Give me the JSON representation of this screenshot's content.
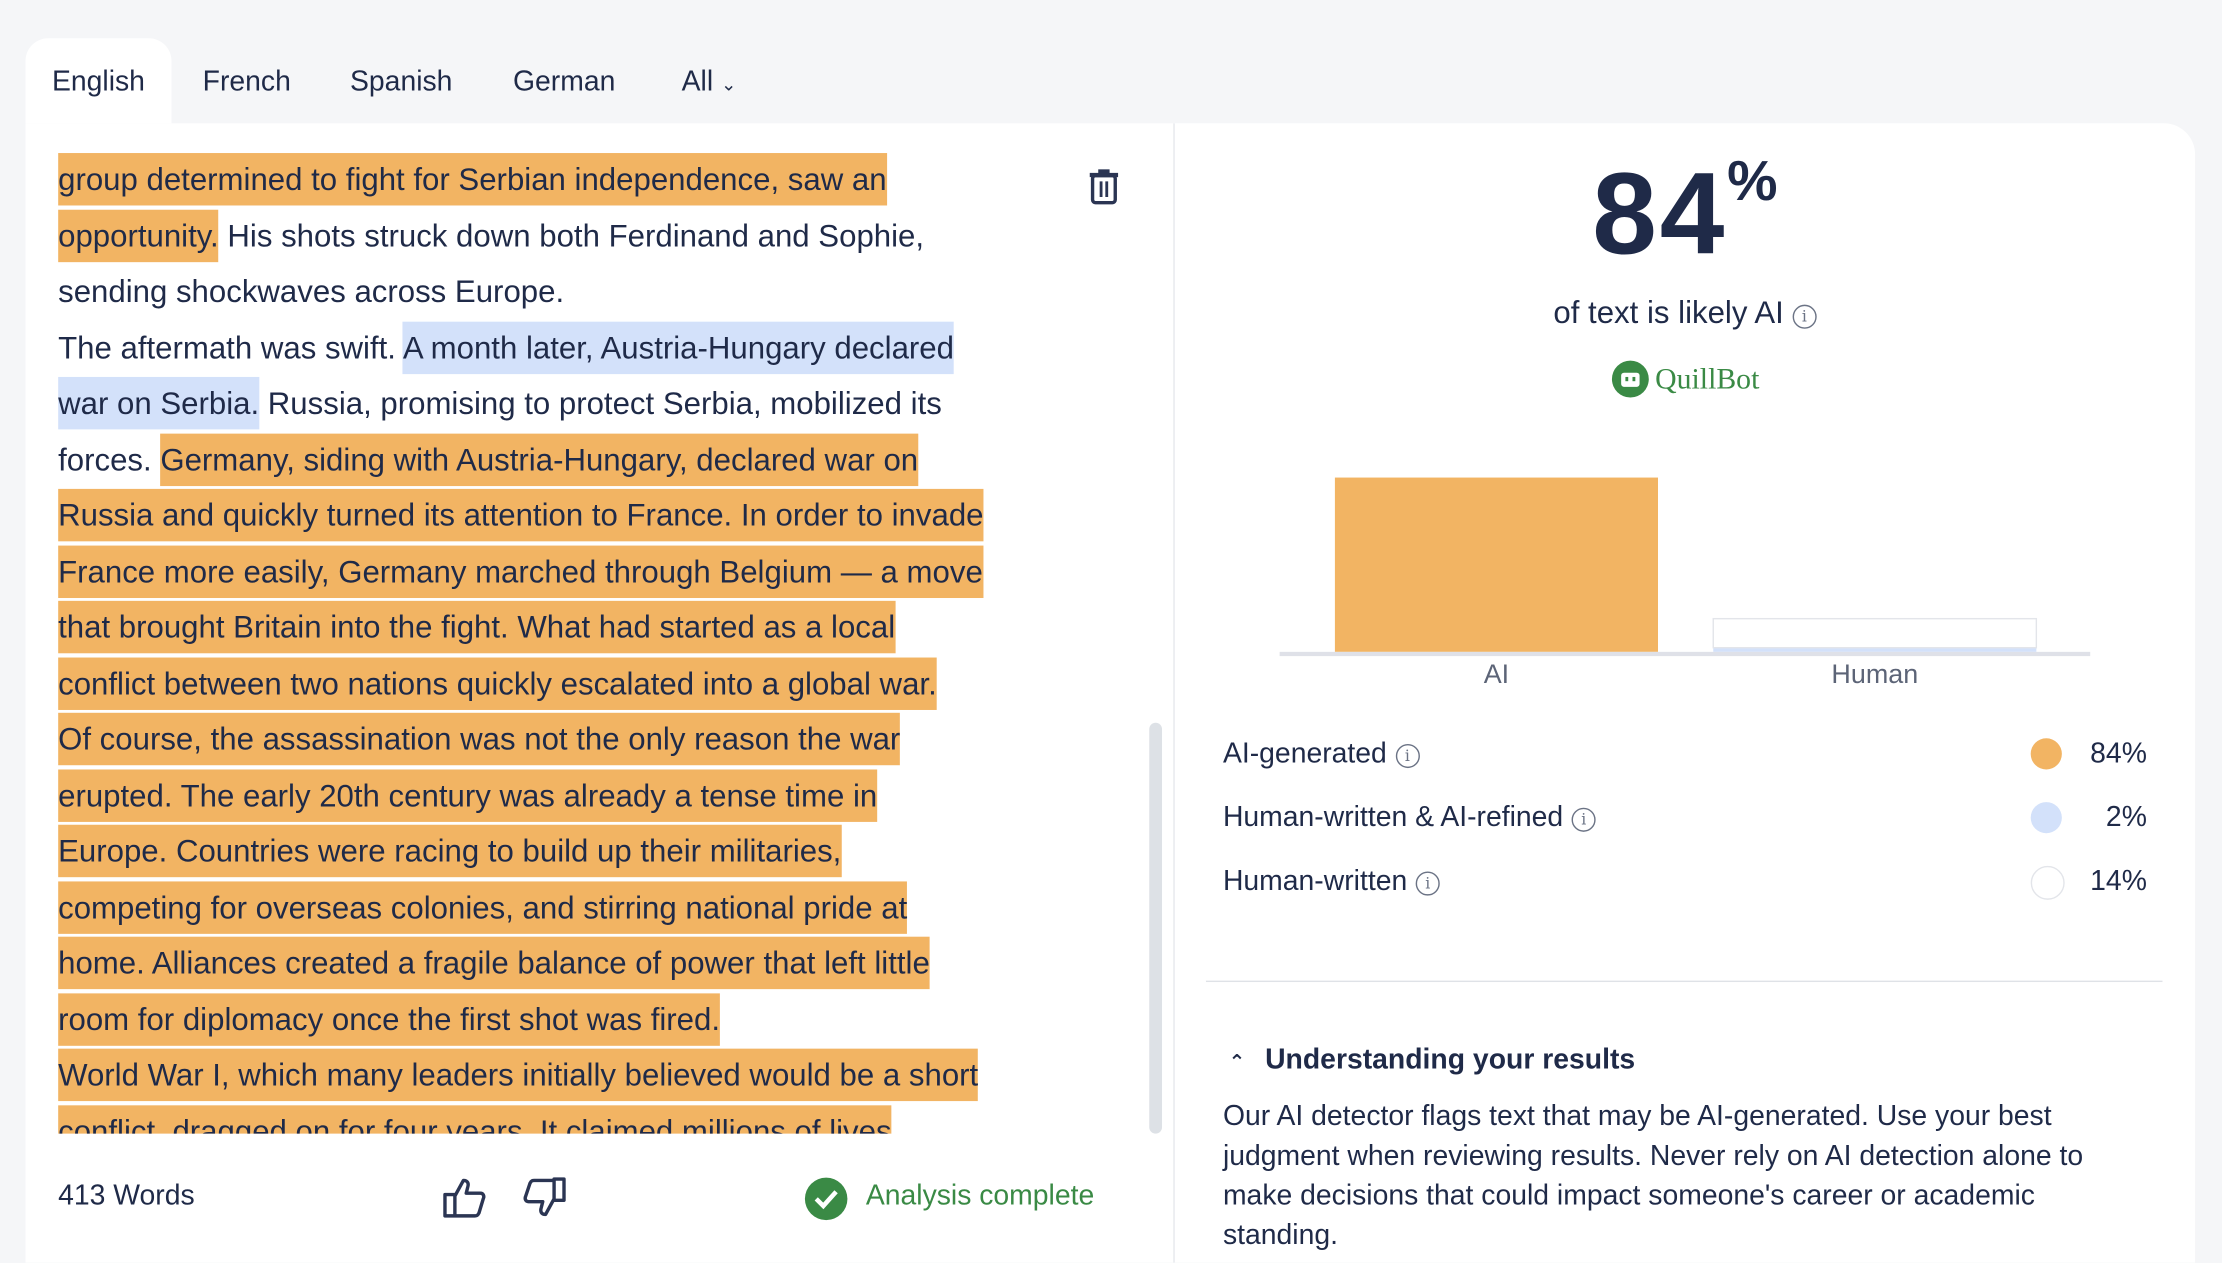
{
  "tabs": [
    {
      "label": "English",
      "active": true
    },
    {
      "label": "French"
    },
    {
      "label": "Spanish"
    },
    {
      "label": "German"
    },
    {
      "label": "All"
    }
  ],
  "editor": {
    "lines": [
      [
        {
          "text": "group determined to fight for Serbian independence, saw an",
          "type": "ai"
        }
      ],
      [
        {
          "text": "opportunity.",
          "type": "ai"
        },
        {
          "text": " His shots struck down both Ferdinand and Sophie,",
          "type": "human"
        }
      ],
      [
        {
          "text": "sending shockwaves across Europe.",
          "type": "human"
        }
      ],
      [
        {
          "text": "The aftermath was swift. ",
          "type": "human"
        },
        {
          "text": "A month later, Austria-Hungary declared",
          "type": "refined"
        }
      ],
      [
        {
          "text": "war on Serbia.",
          "type": "refined"
        },
        {
          "text": " Russia, promising to protect Serbia, mobilized its",
          "type": "human"
        }
      ],
      [
        {
          "text": "forces. ",
          "type": "human"
        },
        {
          "text": "Germany, siding with Austria-Hungary, declared war on",
          "type": "ai"
        }
      ],
      [
        {
          "text": "Russia and quickly turned its attention to France. In order to invade",
          "type": "ai"
        }
      ],
      [
        {
          "text": "France more easily, Germany marched through Belgium — a move",
          "type": "ai"
        }
      ],
      [
        {
          "text": "that brought Britain into the fight. What had started as a local",
          "type": "ai"
        }
      ],
      [
        {
          "text": "conflict between two nations quickly escalated into a global war.",
          "type": "ai"
        }
      ],
      [
        {
          "text": "Of course, the assassination was not the only reason the war",
          "type": "ai"
        }
      ],
      [
        {
          "text": "erupted. The early 20th century was already a tense time in",
          "type": "ai"
        }
      ],
      [
        {
          "text": "Europe. Countries were racing to build up their militaries,",
          "type": "ai"
        }
      ],
      [
        {
          "text": "competing for overseas colonies, and stirring national pride at",
          "type": "ai"
        }
      ],
      [
        {
          "text": "home. Alliances created a fragile balance of power that left little",
          "type": "ai"
        }
      ],
      [
        {
          "text": "room for diplomacy once the first shot was fired.",
          "type": "ai"
        }
      ],
      [
        {
          "text": "World War I, which many leaders initially believed would be a short",
          "type": "ai"
        }
      ],
      [
        {
          "text": "conflict, dragged on for four years. It claimed millions of lives",
          "type": "ai"
        }
      ]
    ]
  },
  "footer": {
    "word_count": "413 Words",
    "status": "Analysis complete"
  },
  "result": {
    "percent": "84",
    "percent_sign": "%",
    "subtitle": "of text is likely AI",
    "brand": "QuillBot"
  },
  "chart_data": {
    "type": "bar",
    "categories": [
      "AI",
      "Human"
    ],
    "series": [
      {
        "name": "AI-generated",
        "values": [
          84,
          0
        ],
        "color": "#f2b463"
      },
      {
        "name": "Human-written & AI-refined",
        "values": [
          0,
          2
        ],
        "color": "#d3e1fa"
      },
      {
        "name": "Human-written",
        "values": [
          0,
          14
        ],
        "color": "#ffffff"
      }
    ],
    "ylim": [
      0,
      100
    ]
  },
  "legend": [
    {
      "label": "AI-generated",
      "value": "84%",
      "color": "#f2b463"
    },
    {
      "label": "Human-written & AI-refined",
      "value": "2%",
      "color": "#d3e1fa"
    },
    {
      "label": "Human-written",
      "value": "14%",
      "color": "#ffffff"
    }
  ],
  "understanding": {
    "title": "Understanding your results",
    "body": "Our AI detector flags text that may be AI-generated. Use your best judgment when reviewing results. Never rely on AI detection alone to make decisions that could impact someone's career or academic standing."
  },
  "colors": {
    "ai": "#f2b463",
    "refined": "#d3e1fa",
    "brand_green": "#3a8a45",
    "text": "#1f2a48"
  }
}
